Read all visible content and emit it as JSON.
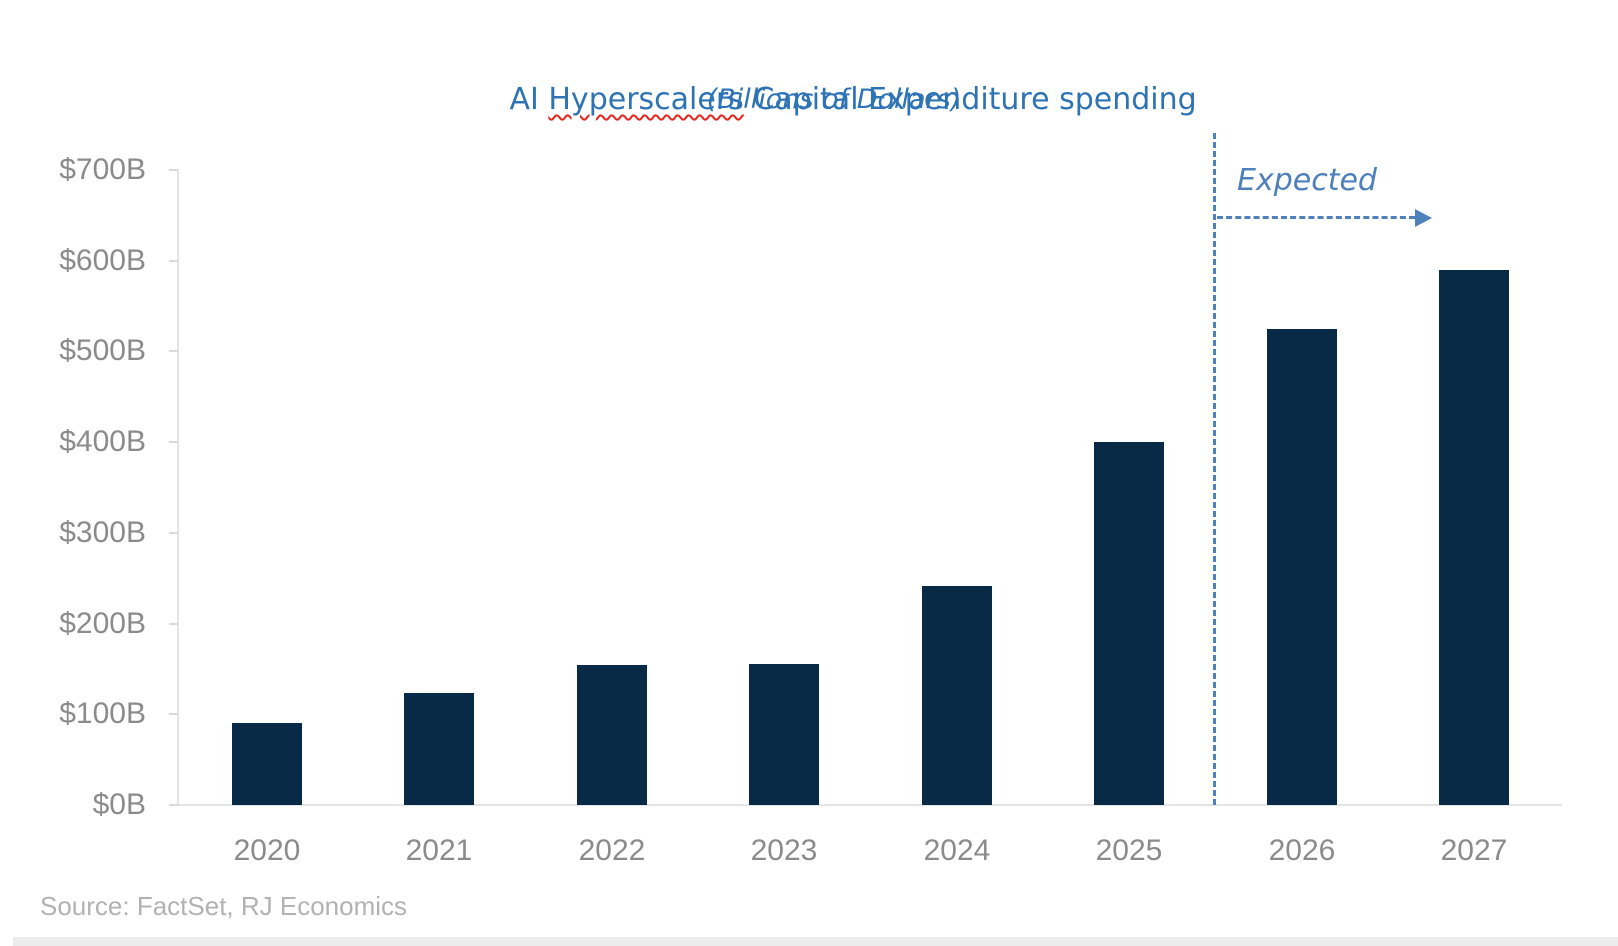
{
  "title": {
    "prefix": "AI ",
    "misspelled_word": "Hyperscalers",
    "suffix": " Capital Expenditure spending",
    "subtitle": "(Billions of Dollars)"
  },
  "annotation": {
    "label": "Expected"
  },
  "source_note": "Source: FactSet, RJ Economics",
  "colors": {
    "bar": "#082a46",
    "title_blue": "#2e74b5",
    "annotation_blue": "#4e80bc",
    "axis_label_gray": "#8b8b8b",
    "source_gray": "#b2b2b2",
    "axis_line_gray": "#e4e4e4",
    "squiggle_red": "#e8251d"
  },
  "chart_data": {
    "type": "bar",
    "title": "AI Hyperscalers Capital Expenditure spending",
    "subtitle": "(Billions of Dollars)",
    "categories": [
      "2020",
      "2021",
      "2022",
      "2023",
      "2024",
      "2025",
      "2026",
      "2027"
    ],
    "values": [
      90,
      123,
      154,
      155,
      241,
      400,
      525,
      590
    ],
    "units": "Billions of US Dollars",
    "xlabel": "",
    "ylabel": "",
    "ylim": [
      0,
      700
    ],
    "ytick_step": 100,
    "ytick_labels": [
      "$0B",
      "$100B",
      "$200B",
      "$300B",
      "$400B",
      "$500B",
      "$600B",
      "$700B"
    ],
    "grid": false,
    "legend": "none",
    "expected_categories": [
      "2026",
      "2027"
    ],
    "expected_divider_between": [
      "2025",
      "2026"
    ]
  }
}
